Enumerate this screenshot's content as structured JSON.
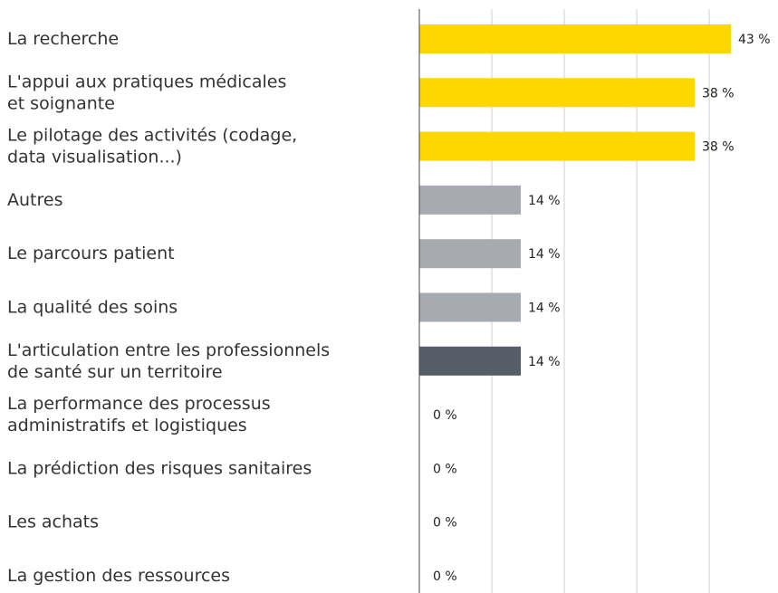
{
  "chart_data": {
    "type": "bar",
    "orientation": "horizontal",
    "categories": [
      "La recherche",
      "L'appui aux pratiques médicales\net soignante",
      "Le pilotage des activités (codage,\ndata visualisation...)",
      "Autres",
      "Le parcours patient",
      "La qualité des soins",
      "L'articulation entre les professionnels\nde santé sur un territoire",
      "La performance des processus\nadministratifs et logistiques",
      "La prédiction des risques sanitaires",
      "Les achats",
      "La gestion des ressources"
    ],
    "values": [
      43,
      38,
      38,
      14,
      14,
      14,
      14,
      0,
      0,
      0,
      0
    ],
    "value_labels": [
      "43 %",
      "38 %",
      "38 %",
      "14 %",
      "14 %",
      "14 %",
      "14 %",
      "0 %",
      "0 %",
      "0 %",
      "0 %"
    ],
    "colors": [
      "#ffd700",
      "#ffd700",
      "#ffd700",
      "#a7abb0",
      "#a7abb0",
      "#a7abb0",
      "#555d66",
      "#555d66",
      "#555d66",
      "#555d66",
      "#555d66"
    ],
    "xlim": [
      0,
      49.5
    ],
    "xticks": [
      0,
      10,
      20,
      30,
      40
    ],
    "grid": true
  }
}
